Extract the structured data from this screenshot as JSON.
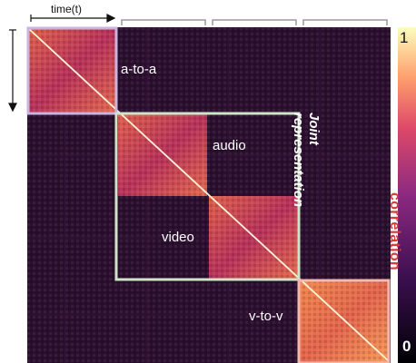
{
  "axis": {
    "time_label": "time(t)"
  },
  "blocks": [
    {
      "id": "a-to-a",
      "label": "a-to-a"
    },
    {
      "id": "audio",
      "label": "audio"
    },
    {
      "id": "video",
      "label": "video"
    },
    {
      "id": "v-to-v",
      "label": "v-to-v"
    }
  ],
  "joint_label": "Joint representation",
  "colorbar": {
    "title": "correlation",
    "max_label": "1",
    "min_label": "0"
  },
  "colors": {
    "matrix_bg": "#2a0f2e",
    "box_a_to_a": "#c9b3e0",
    "box_joint": "#cfe3c8",
    "box_v_to_v": "#f4b8b0",
    "bracket": "#9a9a9a",
    "title_red": "#d63a3a"
  }
}
